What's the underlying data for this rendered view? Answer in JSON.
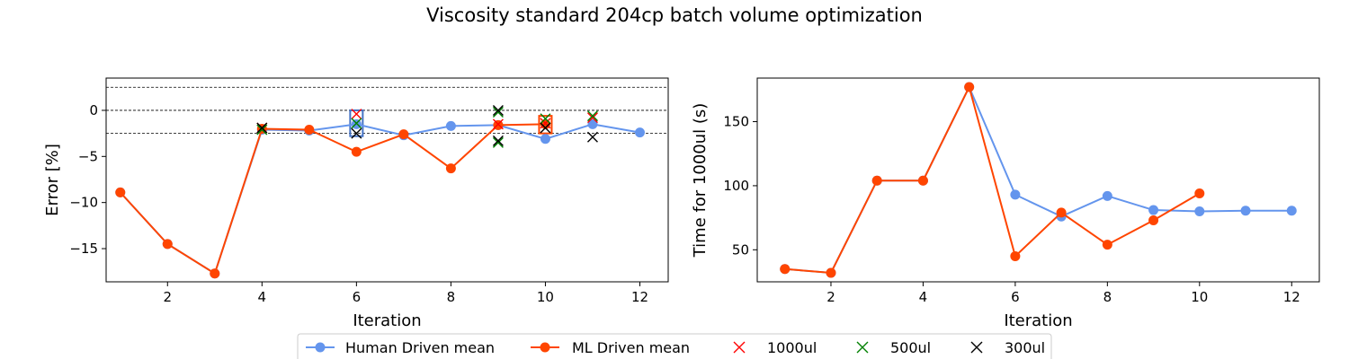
{
  "figure": {
    "title": "Viscosity standard 204cp batch volume optimization"
  },
  "legend": {
    "placement": "bottom-center",
    "entries": [
      {
        "label": "Human Driven mean",
        "marker": "circle-line",
        "color": "#6495ED"
      },
      {
        "label": "ML Driven mean",
        "marker": "circle-line",
        "color": "#FF4500"
      },
      {
        "label": "1000ul",
        "marker": "x",
        "color": "#FF0000"
      },
      {
        "label": "500ul",
        "marker": "x",
        "color": "#008000"
      },
      {
        "label": "300ul",
        "marker": "x",
        "color": "#000000"
      }
    ]
  },
  "chart_data": [
    {
      "type": "line",
      "xlabel": "Iteration",
      "ylabel": "Error [%]",
      "xlim": [
        0.7,
        12.6
      ],
      "ylim": [
        -18.6,
        3.5
      ],
      "xticks": [
        "2",
        "4",
        "6",
        "8",
        "10",
        "12"
      ],
      "xtick_values": [
        2,
        4,
        6,
        8,
        10,
        12
      ],
      "yticks": [
        "−15",
        "−10",
        "−5",
        "0"
      ],
      "ytick_values": [
        -15,
        -10,
        -5,
        0
      ],
      "reference_lines": [
        2.5,
        0,
        -2.5
      ],
      "series": [
        {
          "name": "Human Driven mean",
          "color": "#6495ED",
          "x": [
            1,
            2,
            3,
            4,
            5,
            6,
            7,
            8,
            9,
            10,
            11,
            12
          ],
          "y": [
            -8.9,
            -14.5,
            -17.7,
            -2.1,
            -2.2,
            -1.5,
            -2.7,
            -1.7,
            -1.6,
            -3.1,
            -1.5,
            -2.4
          ]
        },
        {
          "name": "ML Driven mean",
          "color": "#FF4500",
          "x": [
            1,
            2,
            3,
            4,
            5,
            6,
            7,
            8,
            9,
            10
          ],
          "y": [
            -8.9,
            -14.5,
            -17.7,
            -2.0,
            -2.1,
            -4.5,
            -2.6,
            -6.3,
            -1.6,
            -1.5
          ]
        }
      ],
      "scatter": [
        {
          "name": "1000ul",
          "color": "#FF0000",
          "points": [
            [
              4,
              -1.9
            ],
            [
              6,
              -0.4
            ],
            [
              9,
              -1.5
            ],
            [
              10,
              -1.4
            ],
            [
              11,
              -0.8
            ]
          ]
        },
        {
          "name": "500ul",
          "color": "#008000",
          "points": [
            [
              4,
              -2.1
            ],
            [
              6,
              -1.4
            ],
            [
              9,
              -0.2
            ],
            [
              9,
              -3.5
            ],
            [
              10,
              -0.9
            ],
            [
              11,
              -0.6
            ]
          ]
        },
        {
          "name": "300ul",
          "color": "#000000",
          "points": [
            [
              4,
              -1.9
            ],
            [
              6,
              -2.5
            ],
            [
              9,
              0.0
            ],
            [
              9,
              -3.3
            ],
            [
              10,
              -1.9
            ],
            [
              11,
              -2.9
            ]
          ]
        }
      ],
      "highlight_boxes": [
        {
          "x": 6,
          "y_top": 0.0,
          "y_bottom": -2.8,
          "color": "#4472C4"
        },
        {
          "x": 10,
          "y_top": -0.6,
          "y_bottom": -2.5,
          "color": "#FF4500"
        }
      ]
    },
    {
      "type": "line",
      "xlabel": "Iteration",
      "ylabel": "Time for 1000ul (s)",
      "xlim": [
        0.4,
        12.6
      ],
      "ylim": [
        25,
        184
      ],
      "xticks": [
        "2",
        "4",
        "6",
        "8",
        "10",
        "12"
      ],
      "xtick_values": [
        2,
        4,
        6,
        8,
        10,
        12
      ],
      "yticks": [
        "50",
        "100",
        "150"
      ],
      "ytick_values": [
        50,
        100,
        150
      ],
      "series": [
        {
          "name": "Human Driven mean",
          "color": "#6495ED",
          "x": [
            1,
            2,
            3,
            4,
            5,
            6,
            7,
            8,
            9,
            10,
            11,
            12
          ],
          "y": [
            35,
            32,
            104,
            104,
            177,
            93,
            76,
            92,
            81,
            80,
            80.5,
            80.5
          ]
        },
        {
          "name": "ML Driven mean",
          "color": "#FF4500",
          "x": [
            1,
            2,
            3,
            4,
            5,
            6,
            7,
            8,
            9,
            10
          ],
          "y": [
            35,
            32,
            104,
            104,
            177,
            45,
            79,
            54,
            73,
            94
          ]
        }
      ]
    }
  ]
}
